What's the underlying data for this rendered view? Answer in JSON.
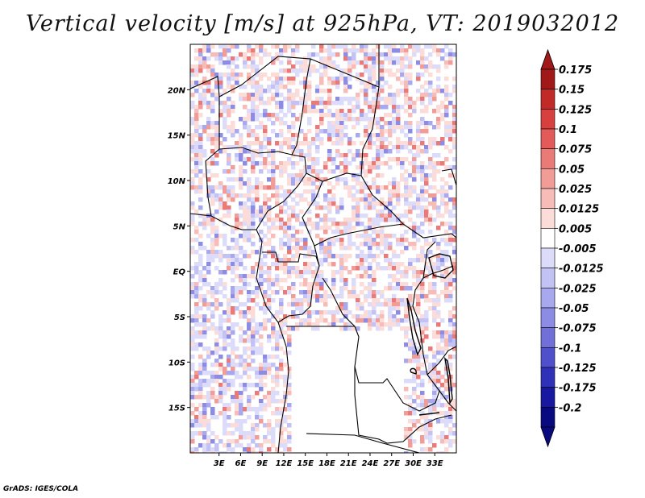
{
  "title": "Vertical velocity [m/s] at 925hPa, VT: 2019032012",
  "credit": "GrADS: IGES/COLA",
  "map": {
    "lat_range": [
      -20,
      25
    ],
    "lon_range": [
      -1,
      36
    ],
    "lat_labels": [
      "20N",
      "15N",
      "10N",
      "5N",
      "EQ",
      "5S",
      "10S",
      "15S"
    ],
    "lat_values": [
      20,
      15,
      10,
      5,
      0,
      -5,
      -10,
      -15
    ],
    "lon_labels": [
      "3E",
      "6E",
      "9E",
      "12E",
      "15E",
      "18E",
      "21E",
      "24E",
      "27E",
      "30E",
      "33E"
    ],
    "lon_values": [
      3,
      6,
      9,
      12,
      15,
      18,
      21,
      24,
      27,
      30,
      33
    ]
  },
  "colorbar": {
    "labels": [
      "0.175",
      "0.15",
      "0.125",
      "0.1",
      "0.075",
      "0.05",
      "0.025",
      "0.0125",
      "0.005",
      "-0.005",
      "-0.0125",
      "-0.025",
      "-0.05",
      "-0.075",
      "-0.1",
      "-0.125",
      "-0.175",
      "-0.2"
    ],
    "colors": [
      "#a01818",
      "#c22a2a",
      "#d84040",
      "#e25a5a",
      "#ea7a78",
      "#f29c98",
      "#f8bcb8",
      "#fcdcd8",
      "#ffffff",
      "#dcdcfa",
      "#c2c2f4",
      "#a8a8ee",
      "#8c8ce4",
      "#7070d8",
      "#5050cc",
      "#3030b8",
      "#1818a0",
      "#0a0a80"
    ],
    "top_color": "#a01818",
    "bottom_color": "#0a0a80"
  }
}
